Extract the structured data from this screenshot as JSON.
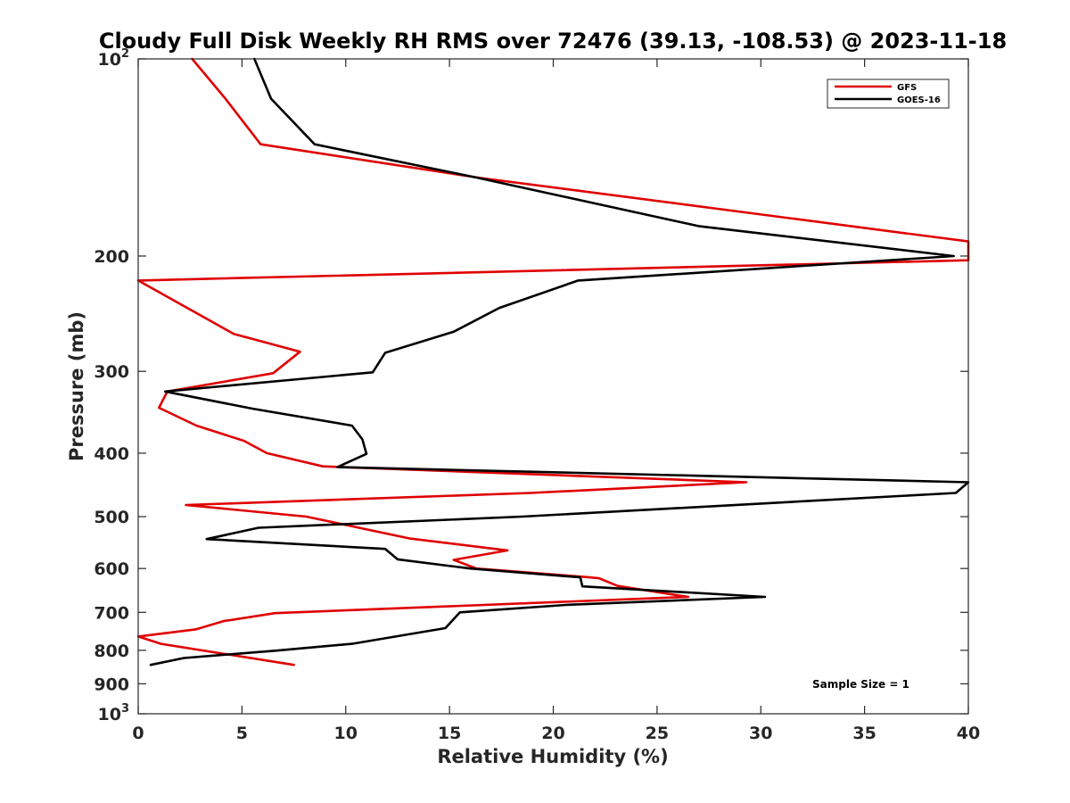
{
  "chart_data": {
    "type": "line",
    "title": "Cloudy Full Disk Weekly RH RMS over 72476 (39.13, -108.53) @ 2023-11-18",
    "xlabel": "Relative Humidity (%)",
    "ylabel": "Pressure (mb)",
    "xlim": [
      0,
      40
    ],
    "ylim": [
      1000,
      100
    ],
    "yscale": "log",
    "y_reversed": true,
    "grid": false,
    "legend_position": "top-right",
    "x_ticks": [
      {
        "value": 0,
        "label": "0"
      },
      {
        "value": 5,
        "label": "5"
      },
      {
        "value": 10,
        "label": "10"
      },
      {
        "value": 15,
        "label": "15"
      },
      {
        "value": 20,
        "label": "20"
      },
      {
        "value": 25,
        "label": "25"
      },
      {
        "value": 30,
        "label": "30"
      },
      {
        "value": 35,
        "label": "35"
      },
      {
        "value": 40,
        "label": "40"
      }
    ],
    "y_ticks": [
      {
        "value": 100,
        "base": "10",
        "exp": "2"
      },
      {
        "value": 200,
        "label": "200"
      },
      {
        "value": 300,
        "label": "300"
      },
      {
        "value": 400,
        "label": "400"
      },
      {
        "value": 500,
        "label": "500"
      },
      {
        "value": 600,
        "label": "600"
      },
      {
        "value": 700,
        "label": "700"
      },
      {
        "value": 800,
        "label": "800"
      },
      {
        "value": 900,
        "label": "900"
      },
      {
        "value": 1000,
        "base": "10",
        "exp": "3"
      }
    ],
    "series": [
      {
        "name": "GFS",
        "color": "#e00000",
        "points": [
          [
            2.6,
            100
          ],
          [
            4.2,
            115
          ],
          [
            5.9,
            135
          ],
          [
            16.5,
            152
          ],
          [
            40.0,
            190
          ],
          [
            40.0,
            203
          ],
          [
            0.0,
            218
          ],
          [
            4.6,
            263
          ],
          [
            7.8,
            280
          ],
          [
            6.5,
            302
          ],
          [
            1.4,
            322
          ],
          [
            1.0,
            341
          ],
          [
            2.8,
            363
          ],
          [
            5.1,
            383
          ],
          [
            6.2,
            400
          ],
          [
            8.9,
            419
          ],
          [
            29.3,
            443
          ],
          [
            18.9,
            460
          ],
          [
            2.3,
            480
          ],
          [
            8.1,
            500
          ],
          [
            13.1,
            540
          ],
          [
            17.8,
            563
          ],
          [
            15.2,
            582
          ],
          [
            16.3,
            600
          ],
          [
            21.5,
            618
          ],
          [
            22.2,
            621
          ],
          [
            23.1,
            638
          ],
          [
            26.5,
            663
          ],
          [
            6.6,
            702
          ],
          [
            4.1,
            722
          ],
          [
            2.8,
            743
          ],
          [
            0.0,
            762
          ],
          [
            1.1,
            782
          ],
          [
            7.5,
            842
          ]
        ]
      },
      {
        "name": "GOES-16",
        "color": "#000000",
        "points": [
          [
            5.6,
            100
          ],
          [
            6.4,
            115
          ],
          [
            8.5,
            135
          ],
          [
            16.4,
            152
          ],
          [
            27.0,
            180
          ],
          [
            39.3,
            200
          ],
          [
            21.2,
            218
          ],
          [
            17.4,
            240
          ],
          [
            15.2,
            261
          ],
          [
            11.9,
            281
          ],
          [
            11.3,
            301
          ],
          [
            1.3,
            322
          ],
          [
            5.5,
            342
          ],
          [
            10.3,
            363
          ],
          [
            10.8,
            381
          ],
          [
            11.0,
            401
          ],
          [
            9.6,
            420
          ],
          [
            40.0,
            443
          ],
          [
            39.4,
            460
          ],
          [
            18.5,
            500
          ],
          [
            5.8,
            520
          ],
          [
            3.3,
            541
          ],
          [
            11.9,
            560
          ],
          [
            12.5,
            581
          ],
          [
            16.0,
            600
          ],
          [
            21.3,
            619
          ],
          [
            21.4,
            639
          ],
          [
            30.2,
            663
          ],
          [
            20.6,
            682
          ],
          [
            15.5,
            700
          ],
          [
            14.8,
            740
          ],
          [
            10.3,
            782
          ],
          [
            6.6,
            801
          ],
          [
            2.2,
            822
          ],
          [
            0.6,
            842
          ]
        ]
      }
    ],
    "annotation": "Sample Size = 1"
  }
}
